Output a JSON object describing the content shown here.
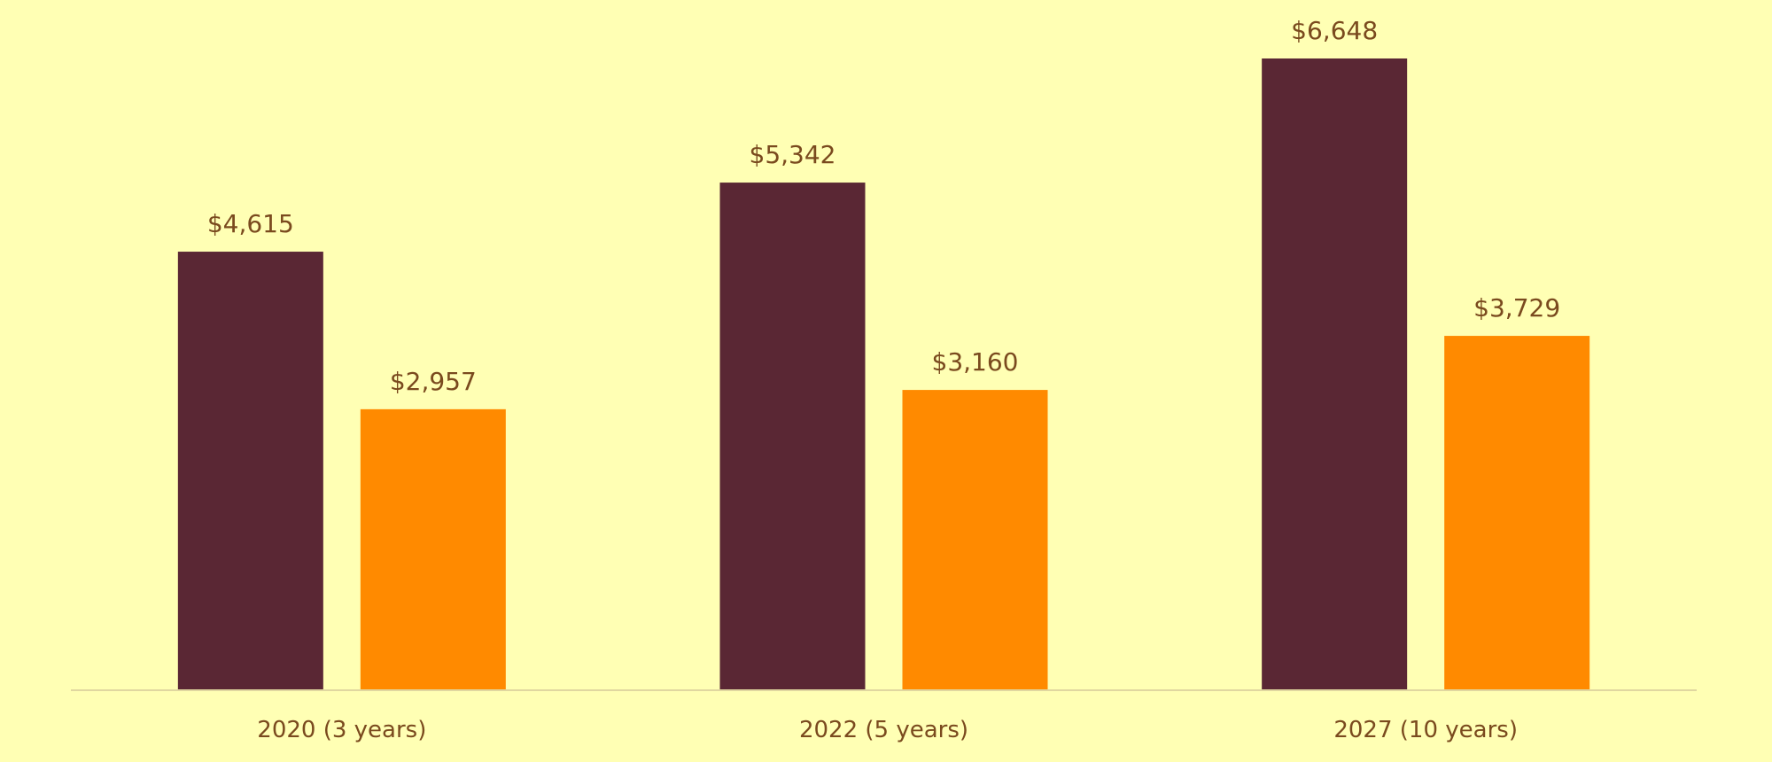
{
  "chart_data": {
    "type": "bar",
    "title": "",
    "xlabel": "",
    "ylabel": "",
    "categories": [
      "2020 (3 years)",
      "2022 (5 years)",
      "2027 (10 years)"
    ],
    "series": [
      {
        "values": [
          4615,
          5342,
          6648
        ],
        "labels": [
          "$4,615",
          "$5,342",
          "$6,648"
        ],
        "color": "#5a2734"
      },
      {
        "values": [
          2957,
          3160,
          3729
        ],
        "labels": [
          "$2,957",
          "$3,160",
          "$3,729"
        ],
        "color": "#ff8a00"
      }
    ],
    "ylim": [
      0,
      7000
    ],
    "grid": false,
    "legend": "none"
  },
  "colors": {
    "background": "#ffffb4",
    "label_text": "#7a4a1e",
    "axis_line": "#e0d7a0"
  }
}
